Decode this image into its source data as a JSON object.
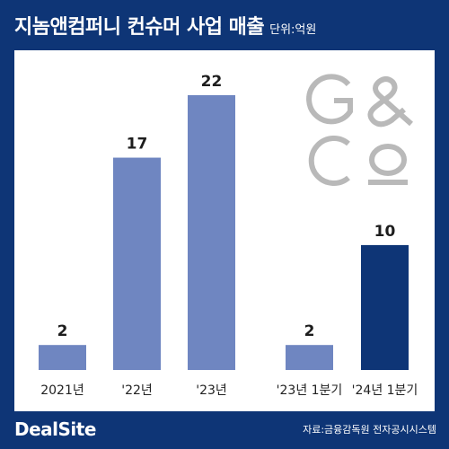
{
  "header": {
    "title": "지놈앤컴퍼니 컨슈머 사업 매출",
    "unit": "단위:억원"
  },
  "logo": {
    "text": "G&Co"
  },
  "chart_data": [
    {
      "type": "bar",
      "categories": [
        "2021년",
        "'22년",
        "'23년"
      ],
      "values": [
        2,
        17,
        22
      ],
      "ylim": [
        0,
        22
      ],
      "color": "#6f86c1"
    },
    {
      "type": "bar",
      "categories": [
        "'23년 1분기",
        "'24년 1분기"
      ],
      "values": [
        2,
        10
      ],
      "ylim": [
        0,
        22
      ],
      "colors": [
        "#6f86c1",
        "#0e3576"
      ]
    }
  ],
  "footer": {
    "brand": "DealSite",
    "source": "자료:금융감독원 전자공시시스템"
  }
}
